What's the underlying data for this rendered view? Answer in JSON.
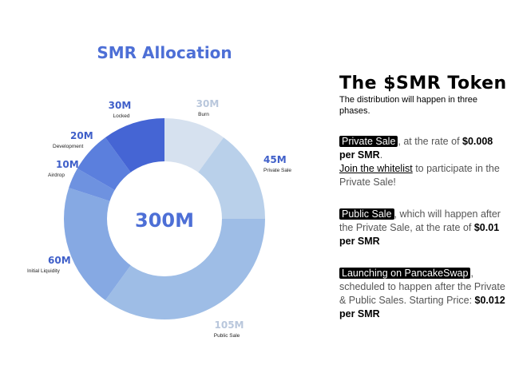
{
  "chart_data": {
    "type": "pie",
    "title": "SMR Allocation",
    "center_label": "300M",
    "categories": [
      "Burn",
      "Private Sale",
      "Public Sale",
      "Initial Liquidity",
      "Airdrop",
      "Development",
      "Locked"
    ],
    "values": [
      30,
      45,
      105,
      60,
      10,
      20,
      30
    ],
    "value_labels": [
      "30M",
      "45M",
      "105M",
      "60M",
      "10M",
      "20M",
      "30M"
    ],
    "colors": [
      "#d6e1ef",
      "#b9d0ea",
      "#9ebde6",
      "#86a9e3",
      "#6e92e0",
      "#5b7fdd",
      "#4565d4"
    ],
    "title_color": "#4d6fd6"
  },
  "info": {
    "title": "The $SMR Token",
    "subtitle": "The distribution will happen in three phases.",
    "private_tag": "Private Sale",
    "private_text1": ", at the rate of ",
    "private_price": "$0.008 per SMR",
    "private_text2": ".",
    "whitelist_link": "Join the whitelist",
    "whitelist_text": " to participate in the Private Sale!",
    "public_tag": "Public Sale",
    "public_text": ", which will happen after the Private Sale, at the rate of ",
    "public_price": "$0.01 per SMR",
    "launch_tag": "Launching on PancakeSwap",
    "launch_text": ", scheduled to happen after the Private & Public Sales. Starting Price: ",
    "launch_price": "$0.012 per SMR"
  }
}
